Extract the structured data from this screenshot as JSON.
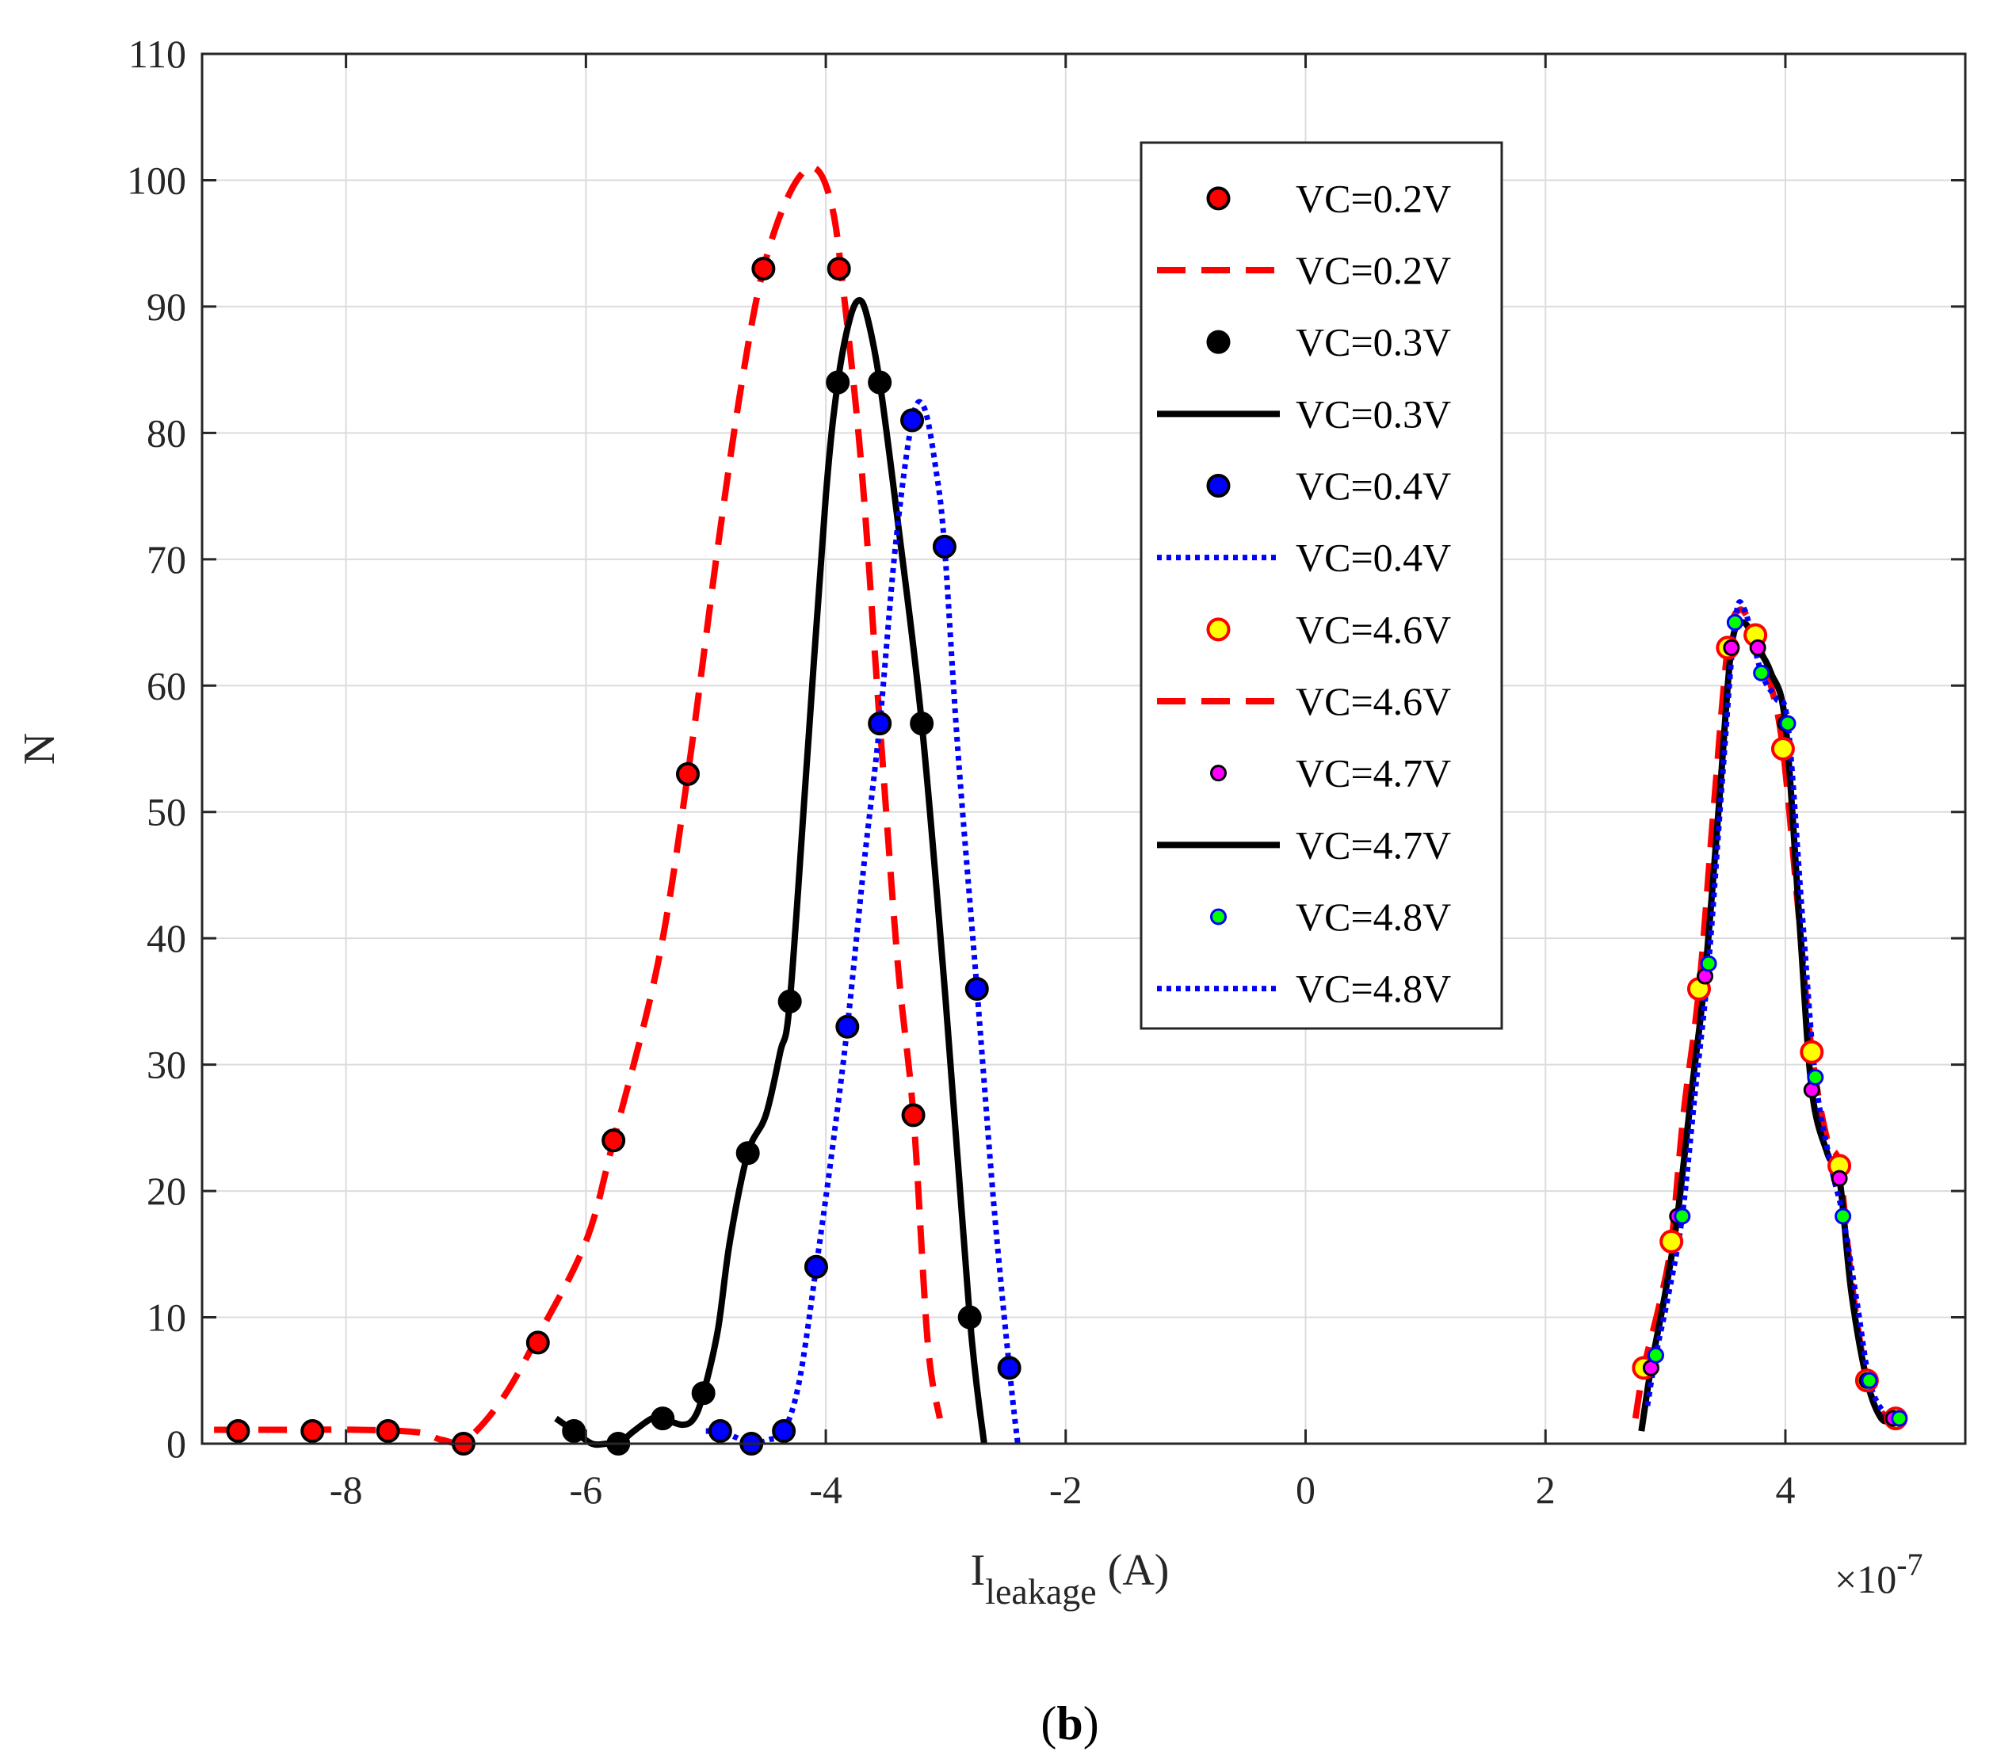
{
  "chart_data": {
    "type": "line",
    "title": "",
    "panel_label": {
      "open": "(",
      "letter": "b",
      "close": ")"
    },
    "xlabel": {
      "main": "I",
      "subscript": "leakage",
      "unit": " (A)"
    },
    "ylabel": "N",
    "x_exponent": {
      "prefix": "×10",
      "power": "-7"
    },
    "xlim": [
      -9.2,
      5.5
    ],
    "ylim": [
      0,
      110
    ],
    "xticks": [
      -8,
      -6,
      -4,
      -2,
      0,
      2,
      4
    ],
    "xtick_labels": [
      "-8",
      "-6",
      "-4",
      "-2",
      "0",
      "2",
      "4"
    ],
    "yticks": [
      0,
      10,
      20,
      30,
      40,
      50,
      60,
      70,
      80,
      90,
      100,
      110
    ],
    "ytick_labels": [
      "0",
      "10",
      "20",
      "30",
      "40",
      "50",
      "60",
      "70",
      "80",
      "90",
      "100",
      "110"
    ],
    "grid": true,
    "legend_position": "top-right",
    "series": [
      {
        "name": "VC=0.2V",
        "kind": "markers",
        "face": "#ff0000",
        "edge": "#000000",
        "x": [
          -8.9,
          -8.28,
          -7.65,
          -7.02,
          -6.4,
          -5.77,
          -5.15,
          -4.52,
          -3.89,
          -3.27
        ],
        "y": [
          1,
          1,
          1,
          0,
          8,
          24,
          53,
          93,
          93,
          26
        ]
      },
      {
        "name": "VC=0.2V",
        "kind": "line",
        "color": "#ff0000",
        "dash": "dashed",
        "x": [
          -9.1,
          -8.5,
          -7.9,
          -7.4,
          -7.2,
          -7.0,
          -6.7,
          -6.4,
          -6.0,
          -5.77,
          -5.4,
          -5.15,
          -4.9,
          -4.7,
          -4.52,
          -4.3,
          -4.1,
          -3.95,
          -3.85,
          -3.7,
          -3.55,
          -3.4,
          -3.27,
          -3.15,
          -3.05
        ],
        "y": [
          1.1,
          1.1,
          1.1,
          0.9,
          0.3,
          0.3,
          3.5,
          8.5,
          16,
          24,
          38,
          53,
          71,
          84,
          93,
          99,
          101,
          98,
          91,
          77,
          57,
          38,
          26,
          8,
          2
        ]
      },
      {
        "name": "VC=0.3V",
        "kind": "markers",
        "face": "#000000",
        "edge": "#000000",
        "x": [
          -6.1,
          -5.73,
          -5.36,
          -5.02,
          -4.65,
          -4.3,
          -3.9,
          -3.55,
          -3.2,
          -2.8
        ],
        "y": [
          1,
          0,
          2,
          4,
          23,
          35,
          84,
          84,
          57,
          10
        ]
      },
      {
        "name": "VC=0.3V",
        "kind": "line",
        "color": "#000000",
        "dash": "solid",
        "x": [
          -6.25,
          -6.1,
          -5.95,
          -5.82,
          -5.73,
          -5.6,
          -5.45,
          -5.36,
          -5.2,
          -5.1,
          -5.02,
          -4.9,
          -4.8,
          -4.65,
          -4.5,
          -4.38,
          -4.3,
          -4.15,
          -4.0,
          -3.9,
          -3.8,
          -3.72,
          -3.65,
          -3.55,
          -3.4,
          -3.2,
          -3.0,
          -2.8,
          -2.68
        ],
        "y": [
          2,
          1,
          0,
          0,
          0,
          1,
          2,
          2,
          1.5,
          2,
          4,
          9,
          16,
          23,
          26,
          31,
          35,
          55,
          75,
          84,
          89,
          90.5,
          89,
          84,
          73,
          57,
          35,
          10,
          0
        ]
      },
      {
        "name": "VC=0.4V",
        "kind": "markers",
        "face": "#0000ff",
        "edge": "#000000",
        "x": [
          -4.88,
          -4.62,
          -4.35,
          -4.08,
          -3.82,
          -3.55,
          -3.28,
          -3.01,
          -2.74,
          -2.47
        ],
        "y": [
          1,
          0,
          1,
          14,
          33,
          57,
          81,
          71,
          36,
          6
        ]
      },
      {
        "name": "VC=0.4V",
        "kind": "line",
        "color": "#0000ff",
        "dash": "dotted",
        "x": [
          -5.0,
          -4.88,
          -4.75,
          -4.62,
          -4.48,
          -4.35,
          -4.22,
          -4.08,
          -3.95,
          -3.82,
          -3.68,
          -3.55,
          -3.42,
          -3.28,
          -3.18,
          -3.08,
          -3.01,
          -2.9,
          -2.74,
          -2.6,
          -2.47,
          -2.4
        ],
        "y": [
          1,
          1,
          0.5,
          0,
          0.3,
          1,
          5,
          14,
          23,
          33,
          46,
          57,
          71,
          81,
          82,
          77,
          71,
          55,
          36,
          19,
          6,
          0
        ]
      },
      {
        "name": "VC=4.6V",
        "kind": "markers",
        "face": "#ffff00",
        "edge": "#ff0000",
        "x": [
          2.82,
          3.05,
          3.28,
          3.52,
          3.75,
          3.98,
          4.22,
          4.45,
          4.68,
          4.92
        ],
        "y": [
          6,
          16,
          36,
          63,
          64,
          55,
          31,
          22,
          5,
          2
        ]
      },
      {
        "name": "VC=4.6V",
        "kind": "line",
        "color": "#ff0000",
        "dash": "dashed",
        "x": [
          2.75,
          2.82,
          2.95,
          3.05,
          3.15,
          3.28,
          3.4,
          3.52,
          3.62,
          3.75,
          3.88,
          3.98,
          4.1,
          4.22,
          4.35,
          4.45,
          4.55,
          4.68,
          4.8,
          4.92,
          5.0
        ],
        "y": [
          2,
          6,
          11,
          16,
          26,
          36,
          50,
          63,
          66,
          64,
          60,
          55,
          43,
          31,
          24,
          22,
          13,
          5,
          2.5,
          2,
          2
        ]
      },
      {
        "name": "VC=4.7V",
        "kind": "markers",
        "face": "#ff00ff",
        "edge": "#000000",
        "x": [
          2.88,
          3.1,
          3.33,
          3.55,
          3.77,
          4.0,
          4.22,
          4.45,
          4.68,
          4.9
        ],
        "y": [
          6,
          18,
          37,
          63,
          63,
          57,
          28,
          21,
          5,
          2
        ]
      },
      {
        "name": "VC=4.7V",
        "kind": "line",
        "color": "#000000",
        "dash": "solid",
        "x": [
          2.8,
          2.88,
          3.0,
          3.1,
          3.22,
          3.33,
          3.45,
          3.55,
          3.65,
          3.77,
          3.88,
          4.0,
          4.12,
          4.22,
          4.35,
          4.45,
          4.55,
          4.68,
          4.8,
          4.9,
          5.0
        ],
        "y": [
          1,
          6,
          12,
          18,
          28,
          37,
          51,
          63,
          65,
          63,
          61,
          57,
          41,
          28,
          23,
          21,
          12,
          5,
          2,
          2,
          2
        ]
      },
      {
        "name": "VC=4.8V",
        "kind": "markers",
        "face": "#00ff00",
        "edge": "#0000ff",
        "x": [
          2.92,
          3.14,
          3.36,
          3.58,
          3.8,
          4.02,
          4.25,
          4.48,
          4.7,
          4.95
        ],
        "y": [
          7,
          18,
          38,
          65,
          61,
          57,
          29,
          18,
          5,
          2
        ]
      },
      {
        "name": "VC=4.8V",
        "kind": "line",
        "color": "#0000ff",
        "dash": "dotted",
        "x": [
          2.85,
          2.92,
          3.03,
          3.14,
          3.25,
          3.36,
          3.47,
          3.58,
          3.66,
          3.8,
          3.92,
          4.02,
          4.14,
          4.25,
          4.38,
          4.48,
          4.6,
          4.7,
          4.82,
          4.95,
          5.02
        ],
        "y": [
          3,
          7,
          12,
          18,
          28,
          38,
          52,
          65,
          66,
          61,
          59,
          57,
          42,
          29,
          22,
          18,
          11,
          5,
          2.5,
          2,
          2
        ]
      }
    ]
  }
}
